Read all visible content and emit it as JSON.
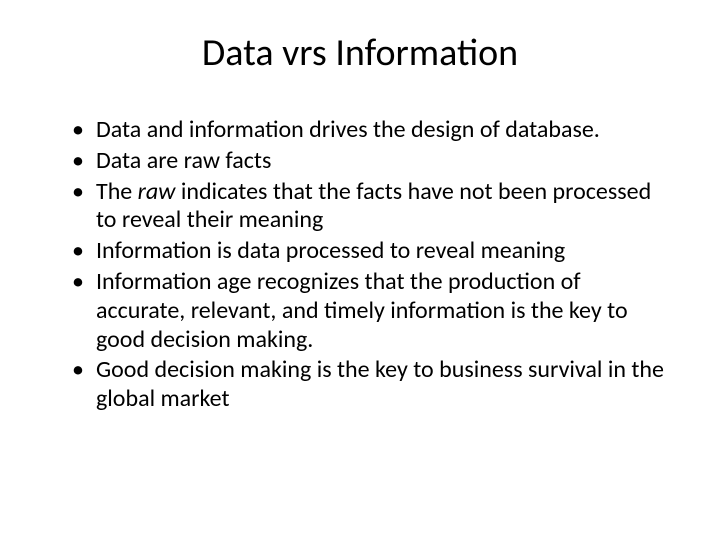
{
  "slide": {
    "title": "Data vrs Information",
    "title_fontsize": 38,
    "body_fontsize": 24,
    "background_color": "#ffffff",
    "text_color": "#000000",
    "font_family": "Calibri",
    "bullets": [
      {
        "text_before": "Data and information drives the design of database.",
        "italic_word": "",
        "text_after": ""
      },
      {
        "text_before": "Data are raw facts",
        "italic_word": "",
        "text_after": ""
      },
      {
        "text_before": "The ",
        "italic_word": "raw",
        "text_after": " indicates that the facts have not been processed to reveal their meaning"
      },
      {
        "text_before": "Information is data processed to reveal meaning",
        "italic_word": "",
        "text_after": ""
      },
      {
        "text_before": "Information age recognizes that the production of accurate, relevant, and timely information is the key to good decision making.",
        "italic_word": "",
        "text_after": ""
      },
      {
        "text_before": "Good decision making is the key to business survival in the global market",
        "italic_word": "",
        "text_after": ""
      }
    ]
  }
}
